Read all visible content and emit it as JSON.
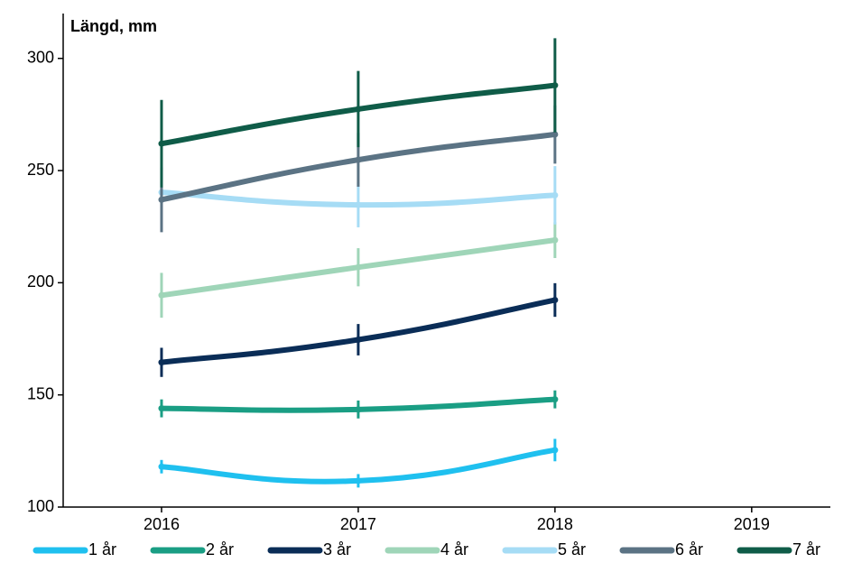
{
  "chart_data": {
    "type": "line",
    "title": "Längd, mm",
    "x": [
      2016,
      2017,
      2018
    ],
    "xlim": [
      2015.5,
      2019.4
    ],
    "xticks": [
      2016,
      2017,
      2018,
      2019
    ],
    "ylim": [
      100,
      320
    ],
    "yticks": [
      100,
      150,
      200,
      250,
      300
    ],
    "series": [
      {
        "name": "1 år",
        "color": "#1fc0ef",
        "values": [
          118,
          111.7,
          125.4
        ],
        "errors": [
          3,
          3,
          5
        ]
      },
      {
        "name": "2 år",
        "color": "#1a9e84",
        "values": [
          144,
          143.5,
          148
        ],
        "errors": [
          4,
          4,
          4
        ]
      },
      {
        "name": "3 år",
        "color": "#0a2d57",
        "values": [
          164.5,
          174.6,
          192.3
        ],
        "errors": [
          6.5,
          7,
          7.5
        ]
      },
      {
        "name": "4 år",
        "color": "#9fd5b8",
        "values": [
          194.4,
          206.9,
          219
        ],
        "errors": [
          10,
          8.5,
          8
        ]
      },
      {
        "name": "5 år",
        "color": "#a6dcf5",
        "values": [
          240.3,
          234.7,
          239
        ],
        "errors": [
          5,
          10,
          13
        ]
      },
      {
        "name": "6 år",
        "color": "#5b7384",
        "values": [
          237,
          254.8,
          266.1
        ],
        "errors": [
          14.5,
          12,
          13
        ]
      },
      {
        "name": "7 år",
        "color": "#0f5c48",
        "values": [
          262,
          277.4,
          288
        ],
        "errors": [
          19.5,
          17,
          21
        ]
      }
    ]
  }
}
